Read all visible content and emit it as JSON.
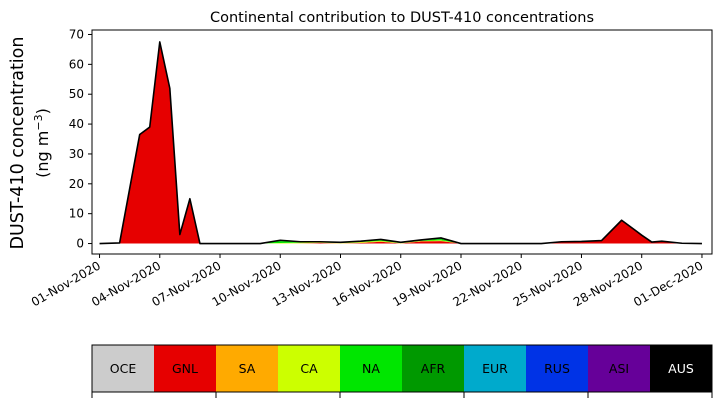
{
  "chart_data": {
    "type": "area",
    "title": "Continental contribution to DUST-410 concentrations",
    "ylabel_line1": "DUST-410 concentration",
    "ylabel_line2_prefix": "(ng m",
    "ylabel_line2_exp": "−3",
    "ylabel_line2_suffix": ")",
    "xlabel": "",
    "x_start": "2020-11-01",
    "xlim": [
      "2020-10-31T15:00",
      "2020-12-01T12:00"
    ],
    "ylim": [
      -3.5,
      71.5
    ],
    "yticks": [
      0,
      10,
      20,
      30,
      40,
      50,
      60,
      70
    ],
    "xticks": [
      "01-Nov-2020",
      "04-Nov-2020",
      "07-Nov-2020",
      "10-Nov-2020",
      "13-Nov-2020",
      "16-Nov-2020",
      "19-Nov-2020",
      "22-Nov-2020",
      "25-Nov-2020",
      "28-Nov-2020",
      "01-Dec-2020"
    ],
    "x": [
      "2020-11-01",
      "2020-11-02",
      "2020-11-03",
      "2020-11-03T12:00",
      "2020-11-04",
      "2020-11-04T12:00",
      "2020-11-05",
      "2020-11-05T12:00",
      "2020-11-06",
      "2020-11-07",
      "2020-11-08",
      "2020-11-09",
      "2020-11-10",
      "2020-11-11",
      "2020-11-12",
      "2020-11-13",
      "2020-11-14",
      "2020-11-15",
      "2020-11-16",
      "2020-11-17",
      "2020-11-18",
      "2020-11-19",
      "2020-11-20",
      "2020-11-21",
      "2020-11-22",
      "2020-11-23",
      "2020-11-24",
      "2020-11-25",
      "2020-11-26",
      "2020-11-27",
      "2020-11-28",
      "2020-11-28T12:00",
      "2020-11-29",
      "2020-11-30",
      "2020-12-01"
    ],
    "series": [
      {
        "name": "OCE",
        "color": "#cccccc",
        "values": [
          0,
          0,
          0,
          0,
          0,
          0,
          0,
          0,
          0,
          0,
          0,
          0,
          0,
          0,
          0,
          0,
          0,
          0,
          0,
          0,
          0,
          0,
          0,
          0,
          0,
          0,
          0,
          0,
          0,
          0,
          0,
          0,
          0,
          0,
          0
        ]
      },
      {
        "name": "GNL",
        "color": "#e60000",
        "values": [
          0,
          0.2,
          36.5,
          39,
          67.5,
          52,
          3,
          15,
          0,
          0,
          0,
          0,
          0,
          0,
          0.2,
          0,
          0.2,
          0.6,
          0,
          0.7,
          0.8,
          0,
          0,
          0,
          0,
          0,
          0.6,
          0.6,
          1.0,
          7.8,
          2.8,
          0.5,
          0.8,
          0.1,
          0
        ]
      },
      {
        "name": "SA",
        "color": "#ffaa00",
        "values": [
          0,
          0,
          0,
          0,
          0,
          0,
          0,
          0,
          0,
          0,
          0,
          0,
          0,
          0.1,
          0.1,
          0.1,
          0.1,
          0.1,
          0.1,
          0.1,
          0.1,
          0,
          0,
          0,
          0,
          0,
          0,
          0.1,
          0,
          0,
          0,
          0,
          0,
          0,
          0
        ]
      },
      {
        "name": "CA",
        "color": "#ccff00",
        "values": [
          0,
          0,
          0,
          0,
          0,
          0,
          0,
          0,
          0,
          0,
          0,
          0,
          0.2,
          0.2,
          0.1,
          0.1,
          0.2,
          0.2,
          0.1,
          0.1,
          0.2,
          0,
          0,
          0,
          0,
          0,
          0,
          0,
          0,
          0,
          0,
          0,
          0,
          0,
          0
        ]
      },
      {
        "name": "NA",
        "color": "#00e600",
        "values": [
          0,
          0,
          0,
          0,
          0,
          0,
          0,
          0,
          0,
          0,
          0,
          0,
          0.6,
          0.2,
          0.1,
          0.1,
          0.2,
          0.3,
          0.1,
          0.2,
          0.4,
          0,
          0,
          0,
          0,
          0,
          0,
          0,
          0,
          0,
          0,
          0,
          0,
          0,
          0
        ]
      },
      {
        "name": "AFR",
        "color": "#009900",
        "values": [
          0,
          0,
          0,
          0,
          0,
          0,
          0,
          0,
          0,
          0,
          0,
          0,
          0.3,
          0.1,
          0.1,
          0.1,
          0.1,
          0.2,
          0.1,
          0.1,
          0.4,
          0,
          0,
          0,
          0,
          0,
          0,
          0,
          0,
          0,
          0,
          0,
          0,
          0,
          0
        ]
      },
      {
        "name": "EUR",
        "color": "#00aacc",
        "values": [
          0,
          0,
          0,
          0,
          0,
          0,
          0,
          0,
          0,
          0,
          0,
          0,
          0,
          0,
          0,
          0,
          0,
          0,
          0,
          0,
          0,
          0,
          0,
          0,
          0,
          0,
          0,
          0,
          0,
          0,
          0,
          0,
          0,
          0,
          0
        ]
      },
      {
        "name": "RUS",
        "color": "#0033e6",
        "values": [
          0,
          0,
          0,
          0,
          0,
          0,
          0,
          0,
          0,
          0,
          0,
          0,
          0,
          0,
          0,
          0,
          0,
          0,
          0,
          0,
          0,
          0,
          0,
          0,
          0,
          0,
          0,
          0,
          0,
          0,
          0,
          0,
          0,
          0,
          0
        ]
      },
      {
        "name": "ASI",
        "color": "#660099",
        "values": [
          0,
          0,
          0,
          0,
          0,
          0,
          0,
          0,
          0,
          0,
          0,
          0,
          0,
          0,
          0,
          0,
          0,
          0,
          0,
          0,
          0,
          0,
          0,
          0,
          0,
          0,
          0,
          0,
          0,
          0,
          0,
          0,
          0,
          0,
          0
        ]
      },
      {
        "name": "AUS",
        "color": "#000000",
        "values": [
          0,
          0,
          0,
          0,
          0,
          0,
          0,
          0,
          0,
          0,
          0,
          0,
          0,
          0,
          0,
          0,
          0,
          0,
          0,
          0,
          0,
          0,
          0,
          0,
          0,
          0,
          0,
          0,
          0,
          0,
          0,
          0,
          0,
          0,
          0
        ]
      }
    ],
    "legend": [
      {
        "label": "OCE",
        "color": "#cccccc",
        "text_color": "#000000"
      },
      {
        "label": "GNL",
        "color": "#e60000",
        "text_color": "#000000"
      },
      {
        "label": "SA",
        "color": "#ffaa00",
        "text_color": "#000000"
      },
      {
        "label": "CA",
        "color": "#ccff00",
        "text_color": "#000000"
      },
      {
        "label": "NA",
        "color": "#00e600",
        "text_color": "#000000"
      },
      {
        "label": "AFR",
        "color": "#009900",
        "text_color": "#000000"
      },
      {
        "label": "EUR",
        "color": "#00aacc",
        "text_color": "#000000"
      },
      {
        "label": "RUS",
        "color": "#0033e6",
        "text_color": "#000000"
      },
      {
        "label": "ASI",
        "color": "#660099",
        "text_color": "#000000"
      },
      {
        "label": "AUS",
        "color": "#000000",
        "text_color": "#ffffff"
      }
    ],
    "legend_placement": "bottom",
    "grid": false,
    "total_line_color": "#000000",
    "colors": {
      "axes": "#000000",
      "background": "#ffffff"
    }
  }
}
